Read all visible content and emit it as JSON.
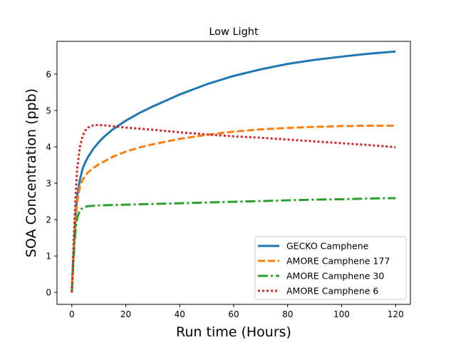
{
  "chart_data": {
    "type": "line",
    "title": "Low Light",
    "xlabel": "Run time (Hours)",
    "ylabel": "SOA Concentration (ppb)",
    "xlim": [
      -5.5,
      125.5
    ],
    "ylim": [
      -0.33,
      6.9
    ],
    "xticks": [
      0,
      20,
      40,
      60,
      80,
      100,
      120
    ],
    "yticks": [
      0,
      1,
      2,
      3,
      4,
      5,
      6
    ],
    "grid": false,
    "legend_position": "lower right",
    "series": [
      {
        "name": "GECKO Camphene",
        "color": "#1f77b4",
        "linestyle": "solid",
        "x": [
          0,
          0.5,
          1,
          1.5,
          2,
          3,
          4,
          5,
          6,
          8,
          10,
          12,
          15,
          20,
          25,
          30,
          40,
          50,
          60,
          70,
          80,
          90,
          100,
          110,
          120
        ],
        "y": [
          0,
          0.9,
          1.6,
          2.2,
          2.65,
          3.1,
          3.4,
          3.58,
          3.72,
          3.95,
          4.13,
          4.28,
          4.47,
          4.72,
          4.93,
          5.11,
          5.44,
          5.72,
          5.95,
          6.13,
          6.28,
          6.39,
          6.48,
          6.56,
          6.62
        ]
      },
      {
        "name": "AMORE Camphene 177",
        "color": "#ff7f0e",
        "linestyle": "dashed",
        "x": [
          0,
          0.5,
          1,
          1.5,
          2,
          3,
          4,
          5,
          6,
          8,
          10,
          12,
          15,
          20,
          25,
          30,
          40,
          50,
          60,
          70,
          80,
          90,
          100,
          110,
          120
        ],
        "y": [
          0,
          0.8,
          1.5,
          2.1,
          2.5,
          2.9,
          3.1,
          3.2,
          3.3,
          3.42,
          3.52,
          3.6,
          3.72,
          3.87,
          3.98,
          4.07,
          4.22,
          4.33,
          4.42,
          4.48,
          4.52,
          4.55,
          4.57,
          4.58,
          4.58
        ]
      },
      {
        "name": "AMORE Camphene 30",
        "color": "#2ca02c",
        "linestyle": "dashdot",
        "x": [
          0,
          0.5,
          1,
          1.5,
          2,
          3,
          4,
          5,
          6,
          8,
          10,
          15,
          20,
          30,
          40,
          50,
          60,
          70,
          80,
          90,
          100,
          110,
          120
        ],
        "y": [
          0,
          0.7,
          1.35,
          1.8,
          2.05,
          2.25,
          2.32,
          2.35,
          2.37,
          2.38,
          2.39,
          2.4,
          2.41,
          2.43,
          2.45,
          2.47,
          2.49,
          2.51,
          2.53,
          2.55,
          2.56,
          2.58,
          2.59
        ]
      },
      {
        "name": "AMORE Camphene 6",
        "color": "#d62728",
        "linestyle": "dotted",
        "x": [
          0,
          0.5,
          1,
          1.5,
          2,
          3,
          4,
          5,
          6,
          7,
          8,
          9,
          10,
          12,
          15,
          20,
          30,
          40,
          50,
          60,
          70,
          80,
          90,
          100,
          110,
          120
        ],
        "y": [
          0,
          1.0,
          2.0,
          2.8,
          3.4,
          4.0,
          4.3,
          4.45,
          4.53,
          4.57,
          4.59,
          4.6,
          4.6,
          4.59,
          4.57,
          4.53,
          4.47,
          4.4,
          4.34,
          4.29,
          4.25,
          4.2,
          4.15,
          4.1,
          4.05,
          3.99
        ]
      }
    ]
  }
}
